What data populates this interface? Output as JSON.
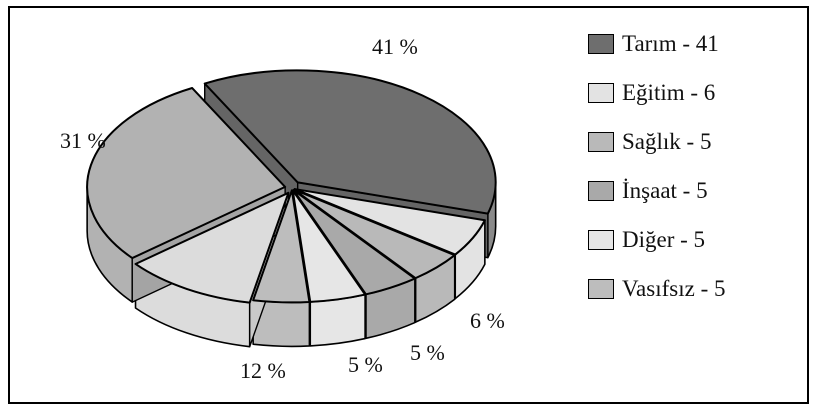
{
  "chart_data": {
    "type": "pie",
    "title": "",
    "legend_position": "right",
    "slices": [
      {
        "legend": "Tarım - 41",
        "value": 41,
        "label": "41 %",
        "color": "#6e6e6e"
      },
      {
        "legend": "Eğitim - 6",
        "value": 6,
        "label": "6 %",
        "color": "#e3e3e3"
      },
      {
        "legend": "Sağlık - 5",
        "value": 5,
        "label": "5 %",
        "color": "#b9b9b9"
      },
      {
        "legend": "İnşaat - 5",
        "value": 5,
        "label": "5 %",
        "color": "#a9a9a9"
      },
      {
        "legend": "Diğer - 5",
        "value": 5,
        "label": "5 %",
        "color": "#e6e6e6"
      },
      {
        "legend": "Vasıfsız - 5",
        "value": 5,
        "label": "",
        "color": "#bdbdbd"
      },
      {
        "legend": "",
        "value": 12,
        "label": "12 %",
        "color": "#dcdcdc"
      },
      {
        "legend": "",
        "value": 31,
        "label": "31 %",
        "color": "#b2b2b2"
      }
    ]
  }
}
